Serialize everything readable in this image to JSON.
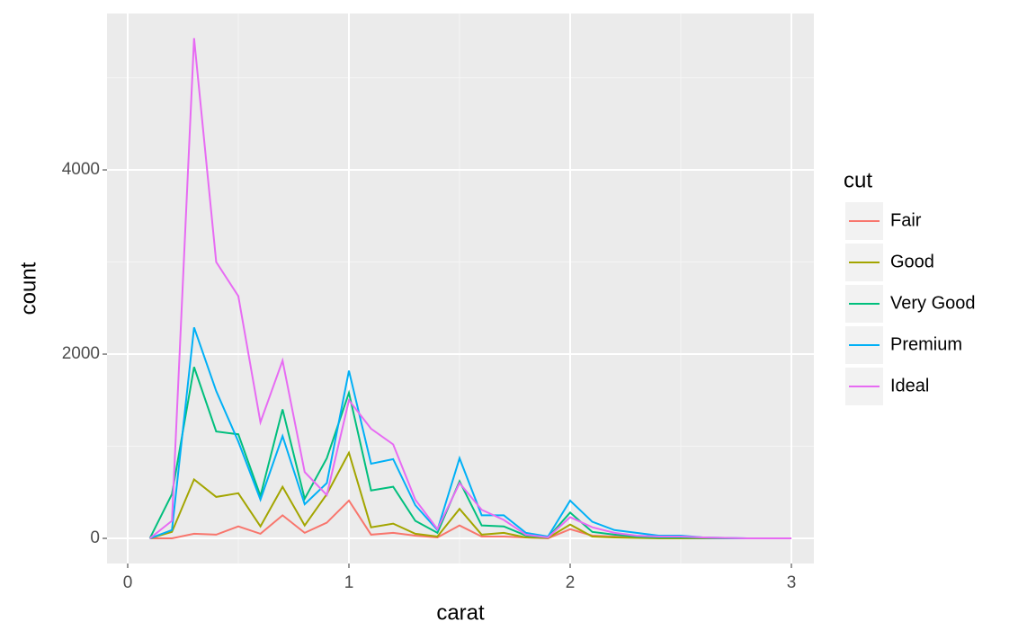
{
  "chart_data": {
    "type": "line",
    "x_label": "carat",
    "y_label": "count",
    "x": [
      0.1,
      0.2,
      0.3,
      0.4,
      0.5,
      0.6,
      0.7,
      0.8,
      0.9,
      1.0,
      1.1,
      1.2,
      1.3,
      1.4,
      1.5,
      1.6,
      1.7,
      1.8,
      1.9,
      2.0,
      2.1,
      2.2,
      2.3,
      2.4,
      2.5,
      2.6,
      2.7,
      2.8,
      2.9,
      3.0
    ],
    "series": [
      {
        "name": "Fair",
        "color": "#F8766D",
        "values": [
          0,
          0,
          50,
          40,
          130,
          50,
          250,
          60,
          170,
          410,
          40,
          60,
          30,
          10,
          140,
          20,
          20,
          10,
          0,
          100,
          30,
          20,
          10,
          5,
          5,
          0,
          0,
          0,
          0,
          0
        ]
      },
      {
        "name": "Good",
        "color": "#A3A500",
        "values": [
          0,
          70,
          640,
          450,
          490,
          130,
          560,
          140,
          480,
          930,
          120,
          160,
          50,
          20,
          320,
          40,
          60,
          10,
          5,
          150,
          20,
          10,
          5,
          0,
          0,
          0,
          0,
          0,
          0,
          0
        ]
      },
      {
        "name": "Very Good",
        "color": "#00BF7D",
        "values": [
          0,
          480,
          1860,
          1160,
          1130,
          460,
          1400,
          430,
          870,
          1580,
          520,
          560,
          190,
          60,
          620,
          140,
          130,
          30,
          10,
          280,
          70,
          40,
          20,
          10,
          10,
          5,
          0,
          0,
          0,
          0
        ]
      },
      {
        "name": "Premium",
        "color": "#00B0F6",
        "values": [
          0,
          90,
          2290,
          1600,
          1050,
          420,
          1110,
          370,
          600,
          1820,
          810,
          860,
          360,
          90,
          870,
          250,
          250,
          60,
          20,
          410,
          180,
          90,
          60,
          30,
          30,
          10,
          5,
          0,
          0,
          0
        ]
      },
      {
        "name": "Ideal",
        "color": "#E76BF3",
        "values": [
          0,
          190,
          5430,
          3000,
          2630,
          1260,
          1930,
          720,
          470,
          1500,
          1190,
          1020,
          420,
          100,
          600,
          310,
          200,
          40,
          10,
          230,
          120,
          60,
          30,
          20,
          20,
          10,
          5,
          0,
          0,
          0
        ]
      }
    ],
    "xlim": [
      -0.0935,
      3.1016
    ],
    "xticks": [
      0,
      1,
      2,
      3
    ],
    "ylim": [
      -273,
      5698
    ],
    "yticks": [
      0,
      2000,
      4000
    ],
    "grid": true,
    "legend": {
      "title": "cut",
      "position": "right"
    }
  }
}
